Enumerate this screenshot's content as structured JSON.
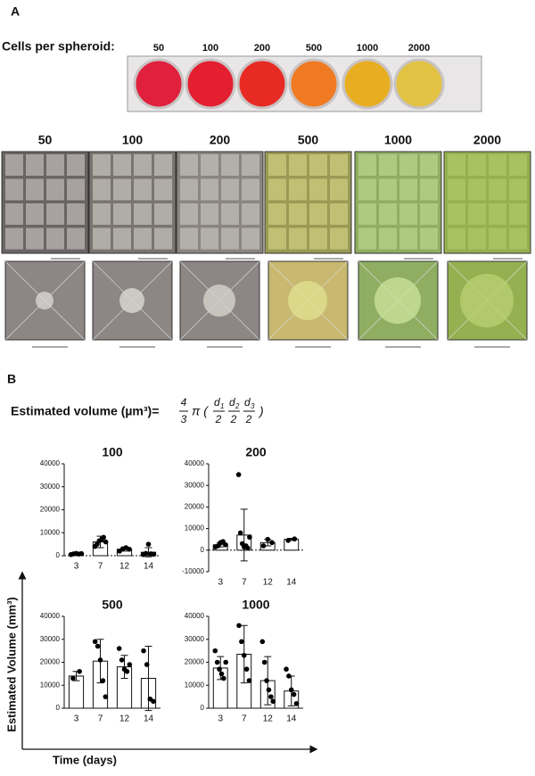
{
  "panel_a": {
    "label": "A",
    "cells_label": "Cells per spheroid:",
    "well_labels": [
      "50",
      "100",
      "200",
      "500",
      "1000",
      "2000"
    ],
    "column_labels": [
      "50",
      "100",
      "200",
      "500",
      "1000",
      "2000"
    ]
  },
  "panel_b": {
    "label": "B",
    "formula": {
      "lhs": "Estimated volume (µm³)=",
      "frac_num": "4",
      "frac_den": "3",
      "pi": "π (",
      "terms": [
        {
          "var": "d",
          "sub": "1",
          "den": "2"
        },
        {
          "var": "d",
          "sub": "2",
          "den": "2"
        },
        {
          "var": "d",
          "sub": "3",
          "den": "2"
        }
      ],
      "close": ")"
    },
    "y_label": "Estimated Volume (mm³)",
    "x_label": "Time (days)"
  },
  "chart_data": [
    {
      "type": "bar",
      "title": "100",
      "categories": [
        "3",
        "7",
        "12",
        "14"
      ],
      "values": [
        800,
        6000,
        2800,
        1500
      ],
      "errors": [
        300,
        2500,
        800,
        2000
      ],
      "points": [
        [
          500,
          800,
          1000,
          700,
          900
        ],
        [
          4000,
          5000,
          6500,
          7000,
          8000,
          6000
        ],
        [
          2000,
          3000,
          3500,
          2800
        ],
        [
          500,
          1000,
          5000,
          800,
          600
        ]
      ],
      "ylim": [
        0,
        40000
      ],
      "yticks": [
        0,
        10000,
        20000,
        30000,
        40000
      ],
      "zero_line": true,
      "color": "#ffffff",
      "point_color": "#000000"
    },
    {
      "type": "bar",
      "title": "200",
      "categories": [
        "3",
        "7",
        "12",
        "14"
      ],
      "values": [
        2500,
        7000,
        3500,
        5000
      ],
      "errors": [
        1000,
        12000,
        1500,
        500
      ],
      "points": [
        [
          1500,
          2000,
          3500,
          4000,
          2500
        ],
        [
          35000,
          8000,
          3000,
          1500,
          2000,
          1000,
          6000
        ],
        [
          2000,
          5000,
          3500
        ],
        [
          4500,
          5200
        ]
      ],
      "ylim": [
        -10000,
        40000
      ],
      "yticks": [
        -10000,
        0,
        10000,
        20000,
        30000,
        40000
      ],
      "zero_line": true,
      "color": "#ffffff",
      "point_color": "#000000"
    },
    {
      "type": "bar",
      "title": "500",
      "categories": [
        "3",
        "7",
        "12",
        "14"
      ],
      "values": [
        14000,
        20500,
        18000,
        13000
      ],
      "errors": [
        2000,
        9500,
        5000,
        14000
      ],
      "points": [
        [
          13000,
          16000
        ],
        [
          29000,
          27000,
          21000,
          12000,
          5000
        ],
        [
          26000,
          21000,
          17000,
          16000,
          19000
        ],
        [
          25000,
          19000,
          4000,
          3000
        ]
      ],
      "ylim": [
        0,
        40000
      ],
      "yticks": [
        0,
        10000,
        20000,
        30000,
        40000
      ],
      "zero_line": false,
      "color": "#ffffff",
      "point_color": "#000000"
    },
    {
      "type": "bar",
      "title": "1000",
      "categories": [
        "3",
        "7",
        "12",
        "14"
      ],
      "values": [
        17500,
        23500,
        12000,
        7500
      ],
      "errors": [
        5000,
        12500,
        10500,
        6500
      ],
      "points": [
        [
          25000,
          20000,
          17000,
          15000,
          13000,
          20000
        ],
        [
          36000,
          29000,
          23000,
          17000,
          12000
        ],
        [
          29000,
          20000,
          12000,
          8000,
          5000,
          3000
        ],
        [
          17000,
          14000,
          8000,
          6000,
          2000
        ]
      ],
      "ylim": [
        0,
        40000
      ],
      "yticks": [
        0,
        10000,
        20000,
        30000,
        40000
      ],
      "zero_line": false,
      "color": "#ffffff",
      "point_color": "#000000"
    }
  ]
}
